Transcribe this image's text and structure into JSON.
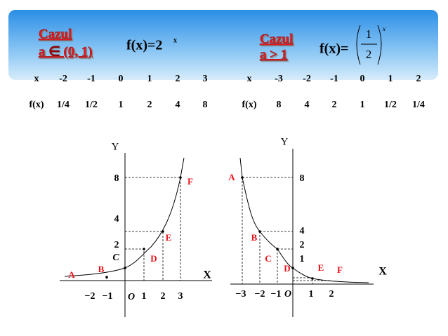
{
  "header": {
    "case1_title": "Cazul",
    "case1_cond": "a ∈ (0, 1)",
    "f1": "f(x)=2",
    "f1_exp": "x",
    "case2_title": "Cazul",
    "case2_cond": "a > 1",
    "f2": "f(x)=",
    "frac_num": "1",
    "frac_den": "2",
    "f2_exp": "x"
  },
  "tables": {
    "left": {
      "rows": [
        [
          "x",
          "-2",
          "-1",
          "0",
          "1",
          "2",
          "3"
        ],
        [
          "f(x)",
          "1/4",
          "1/2",
          "1",
          "2",
          "4",
          "8"
        ]
      ]
    },
    "right": {
      "rows": [
        [
          "x",
          "-3",
          "-2",
          "-1",
          "0",
          "1",
          "2"
        ],
        [
          "f(x)",
          "8",
          "4",
          "2",
          "1",
          "1/2",
          "1/4"
        ]
      ]
    }
  },
  "graphs": {
    "left": {
      "y_label": "Y",
      "x_label": "X",
      "x_ticks": [
        "−2",
        "−1",
        "O",
        "1",
        "2",
        "3"
      ],
      "y_ticks": [
        "8",
        "4",
        "2"
      ],
      "points": [
        "A",
        "B",
        "C",
        "D",
        "E",
        "F"
      ]
    },
    "right": {
      "y_label": "Y",
      "x_label": "X",
      "x_ticks": [
        "−3",
        "−2",
        "−1",
        "O",
        "1",
        "2"
      ],
      "y_ticks": [
        "8",
        "4",
        "2",
        "1"
      ],
      "points": [
        "A",
        "B",
        "C",
        "D",
        "E",
        "F"
      ]
    }
  }
}
